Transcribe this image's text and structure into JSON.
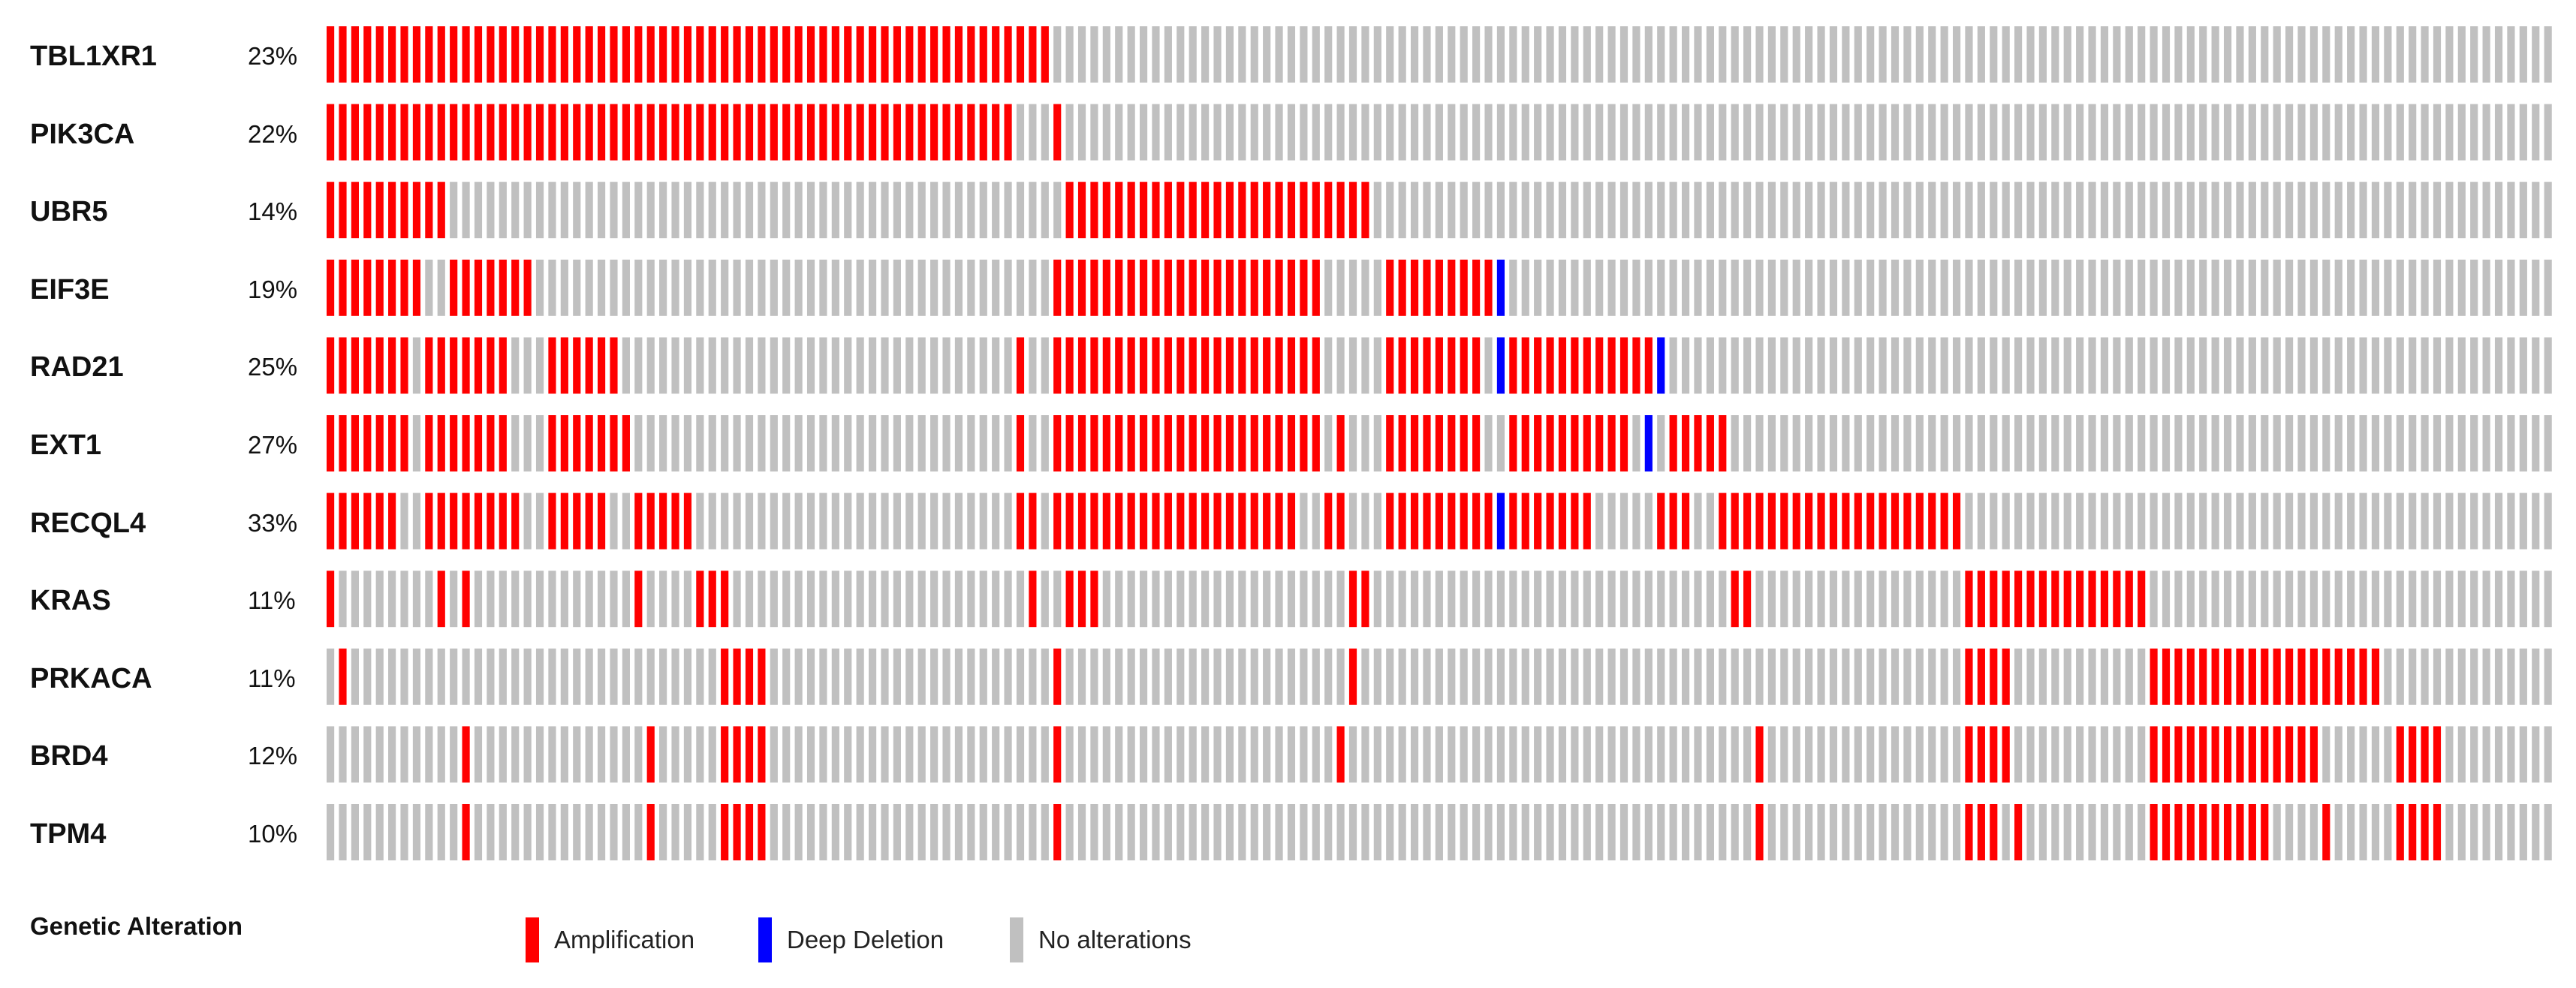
{
  "chart_data": {
    "type": "oncoprint",
    "n_samples": 181,
    "colors": {
      "amp": "#ff0000",
      "del": "#0000ff",
      "none": "#c0c0c0"
    },
    "genes": [
      {
        "name": "TBL1XR1",
        "pct": "23%",
        "amp": [
          [
            0,
            58
          ]
        ]
      },
      {
        "name": "PIK3CA",
        "pct": "22%",
        "amp": [
          [
            0,
            55
          ],
          [
            59,
            59
          ]
        ]
      },
      {
        "name": "UBR5",
        "pct": "14%",
        "amp": [
          [
            0,
            9
          ],
          [
            60,
            84
          ]
        ]
      },
      {
        "name": "EIF3E",
        "pct": "19%",
        "amp": [
          [
            0,
            7
          ],
          [
            10,
            16
          ],
          [
            59,
            80
          ],
          [
            86,
            94
          ]
        ],
        "del": [
          [
            95,
            95
          ]
        ]
      },
      {
        "name": "RAD21",
        "pct": "25%",
        "amp": [
          [
            0,
            6
          ],
          [
            8,
            14
          ],
          [
            18,
            23
          ],
          [
            56,
            56
          ],
          [
            59,
            80
          ],
          [
            86,
            93
          ],
          [
            96,
            107
          ]
        ],
        "del": [
          [
            95,
            95
          ],
          [
            108,
            108
          ]
        ]
      },
      {
        "name": "EXT1",
        "pct": "27%",
        "amp": [
          [
            0,
            6
          ],
          [
            8,
            14
          ],
          [
            18,
            24
          ],
          [
            56,
            56
          ],
          [
            59,
            80
          ],
          [
            82,
            82
          ],
          [
            86,
            93
          ],
          [
            96,
            105
          ],
          [
            109,
            113
          ]
        ],
        "del": [
          [
            107,
            107
          ]
        ]
      },
      {
        "name": "RECQL4",
        "pct": "33%",
        "amp": [
          [
            0,
            5
          ],
          [
            8,
            15
          ],
          [
            18,
            22
          ],
          [
            25,
            29
          ],
          [
            56,
            57
          ],
          [
            59,
            78
          ],
          [
            81,
            82
          ],
          [
            86,
            93
          ],
          [
            94,
            94
          ],
          [
            96,
            102
          ],
          [
            108,
            110
          ],
          [
            113,
            132
          ]
        ],
        "del": [
          [
            95,
            95
          ]
        ]
      },
      {
        "name": "KRAS",
        "pct": "11%",
        "amp": [
          [
            0,
            0
          ],
          [
            9,
            9
          ],
          [
            11,
            11
          ],
          [
            25,
            25
          ],
          [
            30,
            32
          ],
          [
            57,
            57
          ],
          [
            60,
            62
          ],
          [
            83,
            84
          ],
          [
            114,
            115
          ],
          [
            133,
            147
          ]
        ]
      },
      {
        "name": "PRKACA",
        "pct": "11%",
        "amp": [
          [
            1,
            1
          ],
          [
            32,
            35
          ],
          [
            59,
            59
          ],
          [
            83,
            83
          ],
          [
            133,
            136
          ],
          [
            148,
            166
          ]
        ]
      },
      {
        "name": "BRD4",
        "pct": "12%",
        "amp": [
          [
            11,
            11
          ],
          [
            26,
            26
          ],
          [
            32,
            35
          ],
          [
            59,
            59
          ],
          [
            82,
            82
          ],
          [
            116,
            116
          ],
          [
            133,
            136
          ],
          [
            148,
            161
          ],
          [
            168,
            171
          ]
        ]
      },
      {
        "name": "TPM4",
        "pct": "10%",
        "amp": [
          [
            11,
            11
          ],
          [
            26,
            26
          ],
          [
            32,
            35
          ],
          [
            59,
            59
          ],
          [
            116,
            116
          ],
          [
            133,
            135
          ],
          [
            137,
            137
          ],
          [
            148,
            157
          ],
          [
            162,
            162
          ],
          [
            168,
            171
          ]
        ]
      }
    ],
    "legend": {
      "title": "Genetic Alteration",
      "items": [
        {
          "label": "Amplification",
          "color": "#ff0000"
        },
        {
          "label": "Deep Deletion",
          "color": "#0000ff"
        },
        {
          "label": "No alterations",
          "color": "#c0c0c0"
        }
      ]
    }
  }
}
